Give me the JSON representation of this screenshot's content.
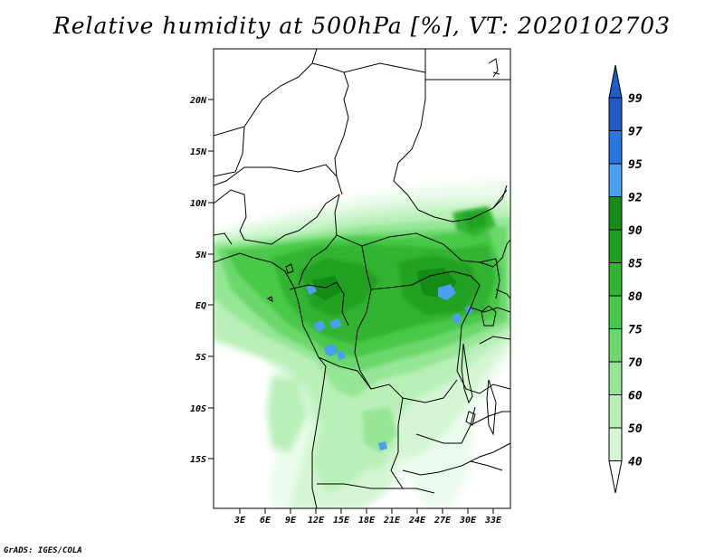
{
  "title": "Relative humidity at 500hPa [%], VT: 2020102703",
  "credit": "GrADS: IGES/COLA",
  "map": {
    "lon_range": [
      0,
      35
    ],
    "lat_range": [
      -20,
      25
    ],
    "lat_ticks": [
      "20N",
      "15N",
      "10N",
      "5N",
      "EQ",
      "5S",
      "10S",
      "15S"
    ],
    "lon_ticks": [
      "3E",
      "6E",
      "9E",
      "12E",
      "15E",
      "18E",
      "21E",
      "24E",
      "27E",
      "30E",
      "33E"
    ]
  },
  "colorbar": {
    "labels": [
      "99",
      "97",
      "95",
      "92",
      "90",
      "85",
      "80",
      "75",
      "70",
      "60",
      "50",
      "40"
    ],
    "colors": {
      "99": "#1e5cc8",
      "97": "#2a74e0",
      "95": "#4aa0ee",
      "92": "#148c14",
      "90": "#20a020",
      "85": "#32b432",
      "80": "#4ac84a",
      "75": "#6cd86c",
      "70": "#96e696",
      "60": "#b8f0b8",
      "50": "#d4f6d4",
      "40": "#ecfcec"
    }
  }
}
